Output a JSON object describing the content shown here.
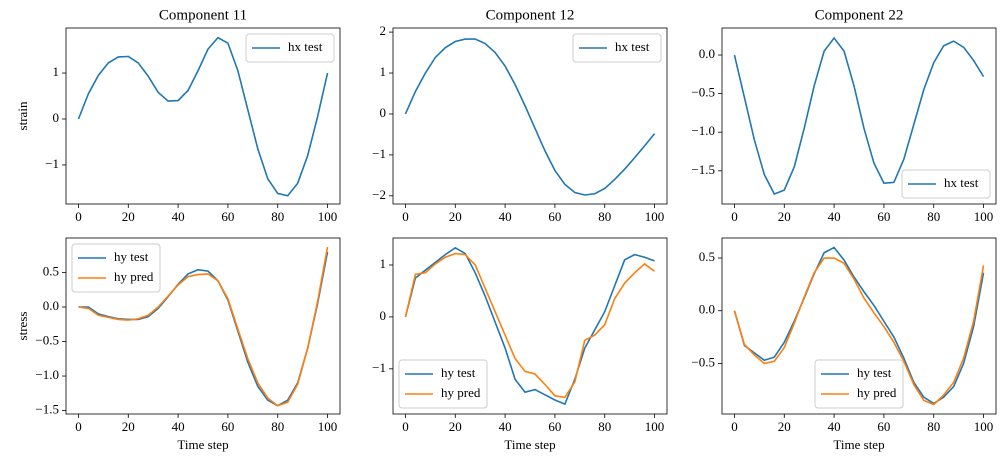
{
  "chart_data": [
    {
      "type": "line",
      "title": "Component 11",
      "y_label": "strain",
      "x": [
        0,
        4,
        8,
        12,
        16,
        20,
        24,
        28,
        32,
        36,
        40,
        44,
        48,
        52,
        56,
        60,
        64,
        68,
        72,
        76,
        80,
        84,
        88,
        92,
        96,
        100
      ],
      "series": [
        {
          "name": "hx test",
          "color": "#1f77b4",
          "values": [
            0,
            0.55,
            0.95,
            1.22,
            1.35,
            1.36,
            1.22,
            0.93,
            0.58,
            0.39,
            0.4,
            0.62,
            1.05,
            1.52,
            1.77,
            1.65,
            1.05,
            0.2,
            -0.65,
            -1.3,
            -1.62,
            -1.67,
            -1.4,
            -0.8,
            0.05,
            1.0
          ]
        }
      ],
      "xlim": [
        -5,
        105
      ],
      "xticks": [
        0,
        20,
        40,
        60,
        80,
        100
      ],
      "ylim": [
        -1.85,
        1.98
      ],
      "yticks": [
        {
          "value": -1,
          "label": "−1"
        },
        0,
        1
      ],
      "legend": "upper right"
    },
    {
      "type": "line",
      "title": "Component 12",
      "x": [
        0,
        4,
        8,
        12,
        16,
        20,
        24,
        28,
        32,
        36,
        40,
        44,
        48,
        52,
        56,
        60,
        64,
        68,
        72,
        76,
        80,
        84,
        88,
        92,
        96,
        100
      ],
      "series": [
        {
          "name": "hx test",
          "color": "#1f77b4",
          "values": [
            0,
            0.55,
            1.0,
            1.38,
            1.62,
            1.77,
            1.83,
            1.83,
            1.72,
            1.5,
            1.17,
            0.72,
            0.2,
            -0.35,
            -0.9,
            -1.38,
            -1.72,
            -1.92,
            -1.98,
            -1.95,
            -1.82,
            -1.6,
            -1.35,
            -1.07,
            -0.78,
            -0.48
          ]
        }
      ],
      "xlim": [
        -5,
        105
      ],
      "xticks": [
        0,
        20,
        40,
        60,
        80,
        100
      ],
      "ylim": [
        -2.2,
        2.1
      ],
      "yticks": [
        {
          "value": -2,
          "label": "−2"
        },
        {
          "value": -1,
          "label": "−1"
        },
        0,
        1,
        2
      ],
      "legend": "upper right"
    },
    {
      "type": "line",
      "title": "Component 22",
      "x": [
        0,
        4,
        8,
        12,
        16,
        20,
        24,
        28,
        32,
        36,
        40,
        44,
        48,
        52,
        56,
        60,
        64,
        68,
        72,
        76,
        80,
        84,
        88,
        92,
        96,
        100
      ],
      "series": [
        {
          "name": "hx test",
          "color": "#1f77b4",
          "values": [
            0,
            -0.55,
            -1.1,
            -1.55,
            -1.8,
            -1.75,
            -1.45,
            -0.95,
            -0.4,
            0.05,
            0.22,
            0.05,
            -0.4,
            -0.95,
            -1.4,
            -1.66,
            -1.65,
            -1.35,
            -0.9,
            -0.45,
            -0.1,
            0.12,
            0.18,
            0.1,
            -0.07,
            -0.28
          ]
        }
      ],
      "xlim": [
        -5,
        105
      ],
      "xticks": [
        0,
        20,
        40,
        60,
        80,
        100
      ],
      "ylim": [
        -1.93,
        0.35
      ],
      "yticks": [
        {
          "value": -1.5,
          "label": "−1.5"
        },
        {
          "value": -1,
          "label": "−1.0"
        },
        {
          "value": -0.5,
          "label": "−0.5"
        },
        {
          "value": 0,
          "label": "0.0"
        }
      ],
      "legend": "lower right"
    },
    {
      "type": "line",
      "y_label": "stress",
      "x_label": "Time step",
      "x": [
        0,
        4,
        8,
        12,
        16,
        20,
        24,
        28,
        32,
        36,
        40,
        44,
        48,
        52,
        56,
        60,
        64,
        68,
        72,
        76,
        80,
        84,
        88,
        92,
        96,
        100
      ],
      "series": [
        {
          "name": "hy test",
          "color": "#1f77b4",
          "values": [
            0,
            0.0,
            -0.1,
            -0.14,
            -0.17,
            -0.18,
            -0.18,
            -0.14,
            -0.02,
            0.15,
            0.33,
            0.48,
            0.54,
            0.52,
            0.38,
            0.1,
            -0.35,
            -0.8,
            -1.15,
            -1.35,
            -1.43,
            -1.35,
            -1.1,
            -0.6,
            0.05,
            0.8
          ]
        },
        {
          "name": "hy pred",
          "color": "#ff7f0e",
          "values": [
            0,
            -0.02,
            -0.12,
            -0.15,
            -0.18,
            -0.19,
            -0.17,
            -0.12,
            0.0,
            0.16,
            0.32,
            0.44,
            0.47,
            0.48,
            0.38,
            0.12,
            -0.32,
            -0.75,
            -1.1,
            -1.32,
            -1.43,
            -1.38,
            -1.12,
            -0.6,
            0.08,
            0.87
          ]
        }
      ],
      "xlim": [
        -5,
        105
      ],
      "xticks": [
        0,
        20,
        40,
        60,
        80,
        100
      ],
      "ylim": [
        -1.55,
        1.0
      ],
      "yticks": [
        {
          "value": -1.5,
          "label": "−1.5"
        },
        {
          "value": -1,
          "label": "−1.0"
        },
        {
          "value": -0.5,
          "label": "−0.5"
        },
        {
          "value": 0,
          "label": "0.0"
        },
        {
          "value": 0.5,
          "label": "0.5"
        }
      ],
      "legend": "upper left"
    },
    {
      "type": "line",
      "x_label": "Time step",
      "x": [
        0,
        4,
        8,
        12,
        16,
        20,
        24,
        28,
        32,
        36,
        40,
        44,
        48,
        52,
        56,
        60,
        64,
        68,
        72,
        76,
        80,
        84,
        88,
        92,
        96,
        100
      ],
      "series": [
        {
          "name": "hy test",
          "color": "#1f77b4",
          "values": [
            0,
            0.75,
            0.9,
            1.05,
            1.2,
            1.33,
            1.22,
            0.85,
            0.4,
            -0.1,
            -0.6,
            -1.2,
            -1.45,
            -1.4,
            -1.5,
            -1.6,
            -1.68,
            -1.2,
            -0.6,
            -0.25,
            0.1,
            0.6,
            1.1,
            1.2,
            1.15,
            1.08
          ]
        },
        {
          "name": "hy pred",
          "color": "#ff7f0e",
          "values": [
            0,
            0.82,
            0.85,
            1.02,
            1.15,
            1.22,
            1.2,
            1.0,
            0.55,
            0.1,
            -0.35,
            -0.8,
            -1.05,
            -1.1,
            -1.3,
            -1.52,
            -1.55,
            -1.25,
            -0.45,
            -0.35,
            -0.15,
            0.35,
            0.65,
            0.85,
            1.02,
            0.88
          ]
        }
      ],
      "xlim": [
        -5,
        105
      ],
      "xticks": [
        0,
        20,
        40,
        60,
        80,
        100
      ],
      "ylim": [
        -1.87,
        1.52
      ],
      "yticks": [
        {
          "value": -1,
          "label": "−1"
        },
        0,
        1
      ],
      "legend": "lower left"
    },
    {
      "type": "line",
      "x_label": "Time step",
      "x": [
        0,
        4,
        8,
        12,
        16,
        20,
        24,
        28,
        32,
        36,
        40,
        44,
        48,
        52,
        56,
        60,
        64,
        68,
        72,
        76,
        80,
        84,
        88,
        92,
        96,
        100
      ],
      "series": [
        {
          "name": "hy test",
          "color": "#1f77b4",
          "values": [
            0,
            -0.33,
            -0.4,
            -0.47,
            -0.44,
            -0.3,
            -0.1,
            0.12,
            0.35,
            0.55,
            0.6,
            0.48,
            0.32,
            0.18,
            0.05,
            -0.1,
            -0.25,
            -0.45,
            -0.68,
            -0.82,
            -0.88,
            -0.82,
            -0.72,
            -0.5,
            -0.15,
            0.36
          ]
        },
        {
          "name": "hy pred",
          "color": "#ff7f0e",
          "values": [
            0,
            -0.32,
            -0.42,
            -0.5,
            -0.48,
            -0.35,
            -0.12,
            0.13,
            0.36,
            0.5,
            0.5,
            0.45,
            0.3,
            0.12,
            -0.02,
            -0.15,
            -0.3,
            -0.48,
            -0.7,
            -0.85,
            -0.89,
            -0.8,
            -0.68,
            -0.45,
            -0.1,
            0.43
          ]
        }
      ],
      "xlim": [
        -5,
        105
      ],
      "xticks": [
        0,
        20,
        40,
        60,
        80,
        100
      ],
      "ylim": [
        -0.98,
        0.69
      ],
      "yticks": [
        {
          "value": -0.5,
          "label": "−0.5"
        },
        {
          "value": 0,
          "label": "0.0"
        },
        {
          "value": 0.5,
          "label": "0.5"
        }
      ],
      "legend": "lower center"
    }
  ]
}
